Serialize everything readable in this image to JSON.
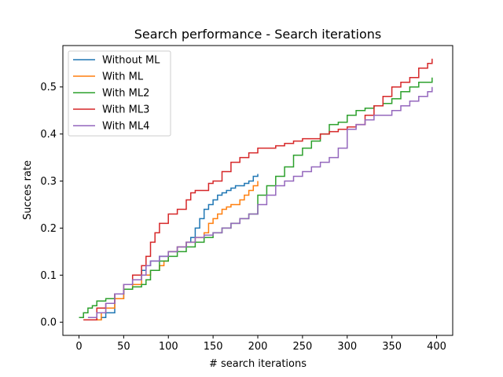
{
  "chart_data": {
    "type": "line",
    "step": true,
    "title": "Search performance - Search iterations",
    "xlabel": "# search iterations",
    "ylabel": "Succes rate",
    "xlim": [
      -18,
      418
    ],
    "ylim": [
      -0.028,
      0.588
    ],
    "xticks": [
      0,
      50,
      100,
      150,
      200,
      250,
      300,
      350,
      400
    ],
    "yticks": [
      0.0,
      0.1,
      0.2,
      0.3,
      0.4,
      0.5
    ],
    "ytick_labels": [
      "0.0",
      "0.1",
      "0.2",
      "0.3",
      "0.4",
      "0.5"
    ],
    "grid": false,
    "legend_position": "upper-left",
    "series": [
      {
        "name": "Without ML",
        "color": "#1f77b4",
        "x": [
          10,
          20,
          25,
          30,
          40,
          50,
          60,
          70,
          75,
          80,
          90,
          100,
          110,
          120,
          125,
          130,
          135,
          140,
          145,
          150,
          155,
          160,
          165,
          170,
          175,
          180,
          185,
          190,
          195,
          200
        ],
        "y": [
          0.005,
          0.005,
          0.01,
          0.02,
          0.05,
          0.07,
          0.09,
          0.11,
          0.12,
          0.13,
          0.14,
          0.15,
          0.16,
          0.17,
          0.18,
          0.2,
          0.22,
          0.24,
          0.25,
          0.26,
          0.27,
          0.275,
          0.28,
          0.285,
          0.29,
          0.29,
          0.295,
          0.3,
          0.31,
          0.315
        ]
      },
      {
        "name": "With ML",
        "color": "#ff7f0e",
        "x": [
          5,
          15,
          25,
          30,
          40,
          50,
          60,
          70,
          75,
          80,
          85,
          90,
          95,
          100,
          110,
          120,
          130,
          140,
          145,
          150,
          155,
          160,
          165,
          170,
          175,
          180,
          185,
          190,
          195,
          200
        ],
        "y": [
          0.005,
          0.005,
          0.02,
          0.03,
          0.05,
          0.07,
          0.08,
          0.1,
          0.1,
          0.11,
          0.11,
          0.12,
          0.13,
          0.15,
          0.16,
          0.17,
          0.18,
          0.19,
          0.21,
          0.22,
          0.23,
          0.24,
          0.245,
          0.25,
          0.25,
          0.26,
          0.27,
          0.28,
          0.29,
          0.3
        ]
      },
      {
        "name": "With ML2",
        "color": "#2ca02c",
        "x": [
          0,
          5,
          10,
          15,
          20,
          30,
          40,
          50,
          60,
          70,
          75,
          80,
          90,
          100,
          110,
          120,
          130,
          140,
          145,
          150,
          160,
          170,
          180,
          190,
          200,
          210,
          220,
          230,
          240,
          250,
          260,
          270,
          280,
          290,
          300,
          310,
          320,
          330,
          340,
          350,
          360,
          370,
          380,
          390,
          395
        ],
        "y": [
          0.01,
          0.02,
          0.03,
          0.035,
          0.045,
          0.05,
          0.06,
          0.07,
          0.075,
          0.08,
          0.09,
          0.11,
          0.13,
          0.14,
          0.15,
          0.16,
          0.17,
          0.18,
          0.18,
          0.19,
          0.2,
          0.21,
          0.22,
          0.23,
          0.27,
          0.29,
          0.31,
          0.33,
          0.355,
          0.37,
          0.385,
          0.4,
          0.42,
          0.425,
          0.44,
          0.45,
          0.455,
          0.46,
          0.465,
          0.475,
          0.49,
          0.5,
          0.51,
          0.51,
          0.52
        ]
      },
      {
        "name": "With ML3",
        "color": "#d62728",
        "x": [
          5,
          20,
          30,
          40,
          50,
          60,
          70,
          75,
          80,
          85,
          90,
          100,
          110,
          120,
          125,
          130,
          140,
          145,
          150,
          160,
          170,
          180,
          190,
          200,
          210,
          220,
          230,
          240,
          250,
          260,
          270,
          280,
          290,
          300,
          310,
          320,
          330,
          340,
          350,
          360,
          370,
          380,
          390,
          395
        ],
        "y": [
          0.005,
          0.03,
          0.04,
          0.06,
          0.08,
          0.1,
          0.12,
          0.14,
          0.17,
          0.19,
          0.21,
          0.23,
          0.24,
          0.26,
          0.275,
          0.28,
          0.28,
          0.295,
          0.3,
          0.32,
          0.34,
          0.35,
          0.36,
          0.37,
          0.37,
          0.375,
          0.38,
          0.385,
          0.39,
          0.39,
          0.4,
          0.405,
          0.41,
          0.415,
          0.42,
          0.44,
          0.46,
          0.48,
          0.5,
          0.51,
          0.52,
          0.54,
          0.55,
          0.56
        ]
      },
      {
        "name": "With ML4",
        "color": "#9467bd",
        "x": [
          10,
          20,
          30,
          40,
          50,
          60,
          70,
          75,
          80,
          90,
          100,
          110,
          120,
          130,
          140,
          150,
          160,
          170,
          180,
          190,
          200,
          210,
          220,
          230,
          240,
          250,
          260,
          270,
          280,
          290,
          300,
          310,
          320,
          330,
          340,
          350,
          360,
          370,
          380,
          390,
          395
        ],
        "y": [
          0.01,
          0.02,
          0.04,
          0.06,
          0.08,
          0.09,
          0.1,
          0.12,
          0.13,
          0.14,
          0.15,
          0.16,
          0.17,
          0.18,
          0.185,
          0.19,
          0.2,
          0.21,
          0.22,
          0.23,
          0.25,
          0.27,
          0.29,
          0.3,
          0.31,
          0.32,
          0.33,
          0.34,
          0.35,
          0.37,
          0.41,
          0.42,
          0.43,
          0.44,
          0.44,
          0.45,
          0.46,
          0.47,
          0.48,
          0.49,
          0.5
        ]
      }
    ]
  }
}
